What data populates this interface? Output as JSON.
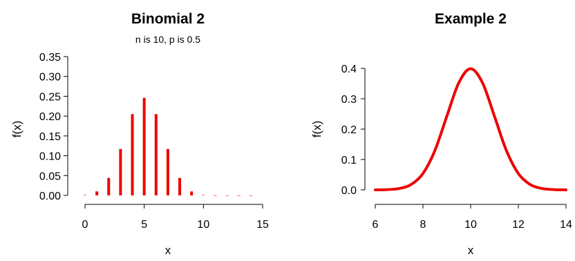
{
  "chart_data": [
    {
      "type": "bar",
      "title": "Binomial 2",
      "subtitle": "n is 10, p is 0.5",
      "xlabel": "x",
      "ylabel": "f(x)",
      "xlim": [
        0,
        15
      ],
      "ylim": [
        0,
        0.35
      ],
      "xticks": [
        "0",
        "5",
        "10",
        "15"
      ],
      "yticks": [
        "0.00",
        "0.05",
        "0.10",
        "0.15",
        "0.20",
        "0.25",
        "0.30",
        "0.35"
      ],
      "x": [
        0,
        1,
        2,
        3,
        4,
        5,
        6,
        7,
        8,
        9,
        10,
        11,
        12,
        13,
        14
      ],
      "values": [
        0.001,
        0.01,
        0.044,
        0.117,
        0.205,
        0.246,
        0.205,
        0.117,
        0.044,
        0.01,
        0.001,
        0,
        0,
        0,
        0
      ],
      "color": "#ee0000"
    },
    {
      "type": "line",
      "title": "Example 2",
      "xlabel": "x",
      "ylabel": "f(x)",
      "xlim": [
        6,
        14
      ],
      "ylim": [
        0,
        0.4
      ],
      "xticks": [
        "6",
        "8",
        "10",
        "12",
        "14"
      ],
      "yticks": [
        "0.0",
        "0.1",
        "0.2",
        "0.3",
        "0.4"
      ],
      "x": [
        6,
        6.5,
        7,
        7.5,
        8,
        8.5,
        9,
        9.5,
        10,
        10.5,
        11,
        11.5,
        12,
        12.5,
        13,
        13.5,
        14
      ],
      "values": [
        0.0001,
        0.0009,
        0.0044,
        0.0175,
        0.054,
        0.1295,
        0.242,
        0.352,
        0.399,
        0.352,
        0.242,
        0.1295,
        0.054,
        0.0175,
        0.0044,
        0.0009,
        0.0001
      ],
      "color": "#ee0000"
    }
  ]
}
